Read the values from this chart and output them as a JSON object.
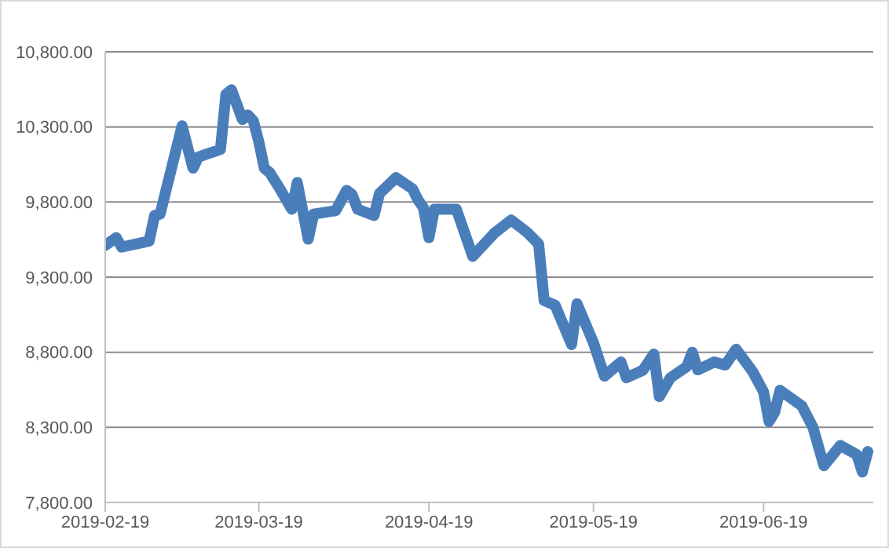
{
  "chart_data": {
    "type": "line",
    "x": [
      "2019-02-19",
      "2019-02-21",
      "2019-02-22",
      "2019-02-26",
      "2019-02-27",
      "2019-02-28",
      "2019-03-01",
      "2019-03-05",
      "2019-03-07",
      "2019-03-08",
      "2019-03-12",
      "2019-03-13",
      "2019-03-14",
      "2019-03-16",
      "2019-03-17",
      "2019-03-18",
      "2019-03-19",
      "2019-03-20",
      "2019-03-21",
      "2019-03-23",
      "2019-03-25",
      "2019-03-26",
      "2019-03-28",
      "2019-03-29",
      "2019-04-02",
      "2019-04-04",
      "2019-04-05",
      "2019-04-06",
      "2019-04-09",
      "2019-04-10",
      "2019-04-13",
      "2019-04-16",
      "2019-04-17",
      "2019-04-18",
      "2019-04-19",
      "2019-04-20",
      "2019-04-24",
      "2019-04-27",
      "2019-05-01",
      "2019-05-04",
      "2019-05-07",
      "2019-05-09",
      "2019-05-10",
      "2019-05-12",
      "2019-05-15",
      "2019-05-16",
      "2019-05-19",
      "2019-05-21",
      "2019-05-24",
      "2019-05-25",
      "2019-05-28",
      "2019-05-30",
      "2019-05-31",
      "2019-06-02",
      "2019-06-05",
      "2019-06-06",
      "2019-06-07",
      "2019-06-10",
      "2019-06-12",
      "2019-06-14",
      "2019-06-17",
      "2019-06-19",
      "2019-06-20",
      "2019-06-21",
      "2019-06-22",
      "2019-06-26",
      "2019-06-28",
      "2019-06-30",
      "2019-07-03",
      "2019-07-06",
      "2019-07-07",
      "2019-07-08"
    ],
    "series": [
      {
        "color": "#4a7ebb",
        "values": [
          9511,
          9563,
          9500,
          9532,
          9540,
          9710,
          9720,
          10307,
          10025,
          10100,
          10150,
          10517,
          10548,
          10350,
          10380,
          10340,
          10200,
          10025,
          9995,
          9878,
          9752,
          9930,
          9553,
          9720,
          9742,
          9878,
          9850,
          9752,
          9710,
          9857,
          9962,
          9888,
          9815,
          9762,
          9563,
          9752,
          9752,
          9438,
          9595,
          9680,
          9595,
          9521,
          9144,
          9113,
          8851,
          9123,
          8862,
          8641,
          8735,
          8630,
          8680,
          8788,
          8505,
          8630,
          8704,
          8800,
          8683,
          8735,
          8715,
          8820,
          8672,
          8537,
          8338,
          8400,
          8547,
          8442,
          8300,
          8045,
          8180,
          8118,
          8003,
          8139
        ]
      }
    ],
    "xlim": [
      "2019-02-19",
      "2019-07-09"
    ],
    "xticks": [
      "2019-02-19",
      "2019-03-19",
      "2019-04-19",
      "2019-05-19",
      "2019-06-19"
    ],
    "ylim": [
      7800,
      10800
    ],
    "yticks": [
      {
        "value": 7800,
        "label": "7,800.00"
      },
      {
        "value": 8300,
        "label": "8,300.00"
      },
      {
        "value": 8800,
        "label": "8,800.00"
      },
      {
        "value": 9300,
        "label": "9,300.00"
      },
      {
        "value": 9800,
        "label": "9,800.00"
      },
      {
        "value": 10300,
        "label": "10,300.00"
      },
      {
        "value": 10800,
        "label": "10,800.00"
      }
    ],
    "grid": "y",
    "legend": false,
    "marker": "none",
    "line_style": "solid"
  }
}
